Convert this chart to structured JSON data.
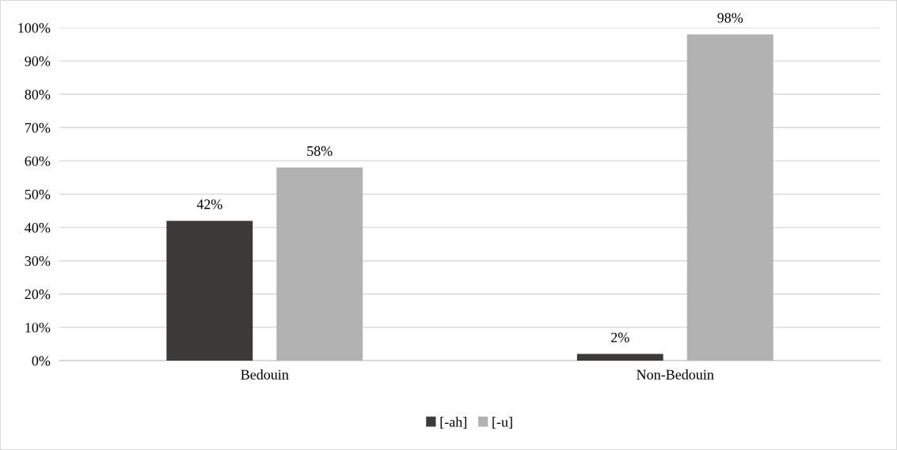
{
  "chart_data": {
    "type": "bar",
    "categories": [
      "Bedouin",
      "Non-Bedouin"
    ],
    "series": [
      {
        "name": "[-ah]",
        "color": "#3b3a39",
        "values": [
          42,
          2
        ],
        "value_labels": [
          "42%",
          "2%"
        ]
      },
      {
        "name": "[-u]",
        "color": "#b2b2b2",
        "values": [
          58,
          98
        ],
        "value_labels": [
          "58%",
          "98%"
        ]
      }
    ],
    "ylim": [
      0,
      100
    ],
    "yticks": [
      {
        "value": 0,
        "label": "0%"
      },
      {
        "value": 10,
        "label": "10%"
      },
      {
        "value": 20,
        "label": "20%"
      },
      {
        "value": 30,
        "label": "30%"
      },
      {
        "value": 40,
        "label": "40%"
      },
      {
        "value": 50,
        "label": "50%"
      },
      {
        "value": 60,
        "label": "60%"
      },
      {
        "value": 70,
        "label": "70%"
      },
      {
        "value": 80,
        "label": "80%"
      },
      {
        "value": 90,
        "label": "90%"
      },
      {
        "value": 100,
        "label": "100%"
      }
    ],
    "grid": "y",
    "legend": "bottom"
  }
}
